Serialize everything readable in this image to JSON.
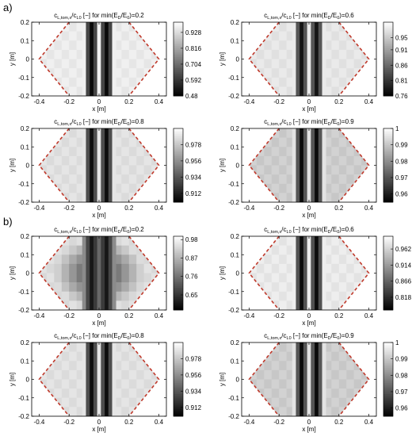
{
  "figure": {
    "part_labels": [
      "a)",
      "b)"
    ]
  },
  "colors": {
    "boundary": "#c0392b"
  },
  "chart_data": [
    {
      "type": "heatmap",
      "group": "a",
      "title_prefix": "c",
      "title_sub1": "L,tom,x",
      "title_mid": "/c",
      "title_sub2": "L0",
      "title_mid2": " [−] for min(E",
      "title_sub3": "D",
      "title_mid3": "/E",
      "title_sub4": "0",
      "title_tail": ")=0.2",
      "xlabel": "x [m]",
      "ylabel": "y [m]",
      "xlim": [
        -0.45,
        0.45
      ],
      "ylim": [
        -0.2,
        0.2
      ],
      "xticks": [
        "-0.4",
        "-0.2",
        "0",
        "0.2",
        "0.4"
      ],
      "yticks": [
        "0.2",
        "0.1",
        "0",
        "-0.1",
        "-0.2"
      ],
      "clim": [
        0.48,
        1.0
      ],
      "colorbar_ticks": [
        0.928,
        0.816,
        0.704,
        0.592,
        0.48
      ],
      "colorbar_labels": [
        "0.928",
        "0.816",
        "0.704",
        "0.592",
        "0.48"
      ],
      "column_x": [
        -0.1,
        -0.075,
        -0.05,
        -0.025,
        0.0,
        0.025,
        0.05,
        0.075,
        0.1
      ],
      "column_values": [
        0.97,
        0.62,
        0.5,
        0.62,
        0.97,
        0.62,
        0.5,
        0.62,
        0.97
      ],
      "field_value": 0.97,
      "grid": false,
      "grid_lines": true
    },
    {
      "type": "heatmap",
      "group": "a",
      "title_prefix": "c",
      "title_sub1": "L,tom,x",
      "title_mid": "/c",
      "title_sub2": "L0",
      "title_mid2": " [−] for min(E",
      "title_sub3": "D",
      "title_mid3": "/E",
      "title_sub4": "0",
      "title_tail": ")=0.6",
      "xlabel": "x [m]",
      "ylabel": "y [m]",
      "xlim": [
        -0.45,
        0.45
      ],
      "ylim": [
        -0.2,
        0.2
      ],
      "xticks": [
        "-0.4",
        "-0.2",
        "0",
        "0.2",
        "0.4"
      ],
      "yticks": [
        "0.2",
        "0.1",
        "0",
        "-0.1",
        "-0.2"
      ],
      "clim": [
        0.76,
        1.0
      ],
      "colorbar_ticks": [
        0.95,
        0.91,
        0.86,
        0.81,
        0.76
      ],
      "colorbar_labels": [
        "0.95",
        "0.91",
        "0.86",
        "0.81",
        "0.76"
      ],
      "column_x": [
        -0.1,
        -0.075,
        -0.05,
        -0.025,
        0.0,
        0.025,
        0.05,
        0.075,
        0.1
      ],
      "column_values": [
        0.98,
        0.84,
        0.78,
        0.84,
        0.98,
        0.84,
        0.78,
        0.84,
        0.98
      ],
      "field_value": 0.98,
      "grid": false,
      "grid_lines": true
    },
    {
      "type": "heatmap",
      "group": "a",
      "title_prefix": "c",
      "title_sub1": "L,tom,x",
      "title_mid": "/c",
      "title_sub2": "L0",
      "title_mid2": " [−] for min(E",
      "title_sub3": "D",
      "title_mid3": "/E",
      "title_sub4": "0",
      "title_tail": ")=0.8",
      "xlabel": "x [m]",
      "ylabel": "y [m]",
      "xlim": [
        -0.45,
        0.45
      ],
      "ylim": [
        -0.2,
        0.2
      ],
      "xticks": [
        "-0.4",
        "-0.2",
        "0",
        "0.2",
        "0.4"
      ],
      "yticks": [
        "0.2",
        "0.1",
        "0",
        "-0.1",
        "-0.2"
      ],
      "clim": [
        0.9,
        1.0
      ],
      "colorbar_ticks": [
        0.978,
        0.956,
        0.934,
        0.912
      ],
      "colorbar_labels": [
        "0.978",
        "0.956",
        "0.934",
        "0.912"
      ],
      "column_x": [
        -0.1,
        -0.075,
        -0.05,
        -0.025,
        0.0,
        0.025,
        0.05,
        0.075,
        0.1
      ],
      "column_values": [
        0.99,
        0.93,
        0.905,
        0.93,
        0.99,
        0.93,
        0.905,
        0.93,
        0.99
      ],
      "field_value": 0.99,
      "grid": false,
      "grid_lines": true
    },
    {
      "type": "heatmap",
      "group": "a",
      "title_prefix": "c",
      "title_sub1": "L,tom,x",
      "title_mid": "/c",
      "title_sub2": "L0",
      "title_mid2": " [−] for min(E",
      "title_sub3": "D",
      "title_mid3": "/E",
      "title_sub4": "0",
      "title_tail": ")=0.9",
      "xlabel": "x [m]",
      "ylabel": "y [m]",
      "xlim": [
        -0.45,
        0.45
      ],
      "ylim": [
        -0.2,
        0.2
      ],
      "xticks": [
        "-0.4",
        "-0.2",
        "0",
        "0.2",
        "0.4"
      ],
      "yticks": [
        "0.2",
        "0.1",
        "0",
        "-0.1",
        "-0.2"
      ],
      "clim": [
        0.955,
        1.0
      ],
      "colorbar_ticks": [
        1.0,
        0.99,
        0.98,
        0.97,
        0.96
      ],
      "colorbar_labels": [
        "1",
        "0.99",
        "0.98",
        "0.97",
        "0.96"
      ],
      "column_x": [
        -0.1,
        -0.075,
        -0.05,
        -0.025,
        0.0,
        0.025,
        0.05,
        0.075,
        0.1
      ],
      "column_values": [
        0.995,
        0.97,
        0.957,
        0.97,
        0.995,
        0.97,
        0.957,
        0.97,
        0.995
      ],
      "field_value": 0.992,
      "grid": false,
      "grid_lines": true
    },
    {
      "type": "heatmap",
      "group": "b",
      "title_prefix": "c",
      "title_sub1": "L,tom,x",
      "title_mid": "/c",
      "title_sub2": "L0",
      "title_mid2": " [−] for min(E",
      "title_sub3": "D",
      "title_mid3": "/E",
      "title_sub4": "0",
      "title_tail": ")=0.2",
      "xlabel": "x [m]",
      "ylabel": "y [m]",
      "xlim": [
        -0.45,
        0.45
      ],
      "ylim": [
        -0.2,
        0.2
      ],
      "xticks": [
        "-0.4",
        "-0.2",
        "0",
        "0.2",
        "0.4"
      ],
      "yticks": [
        "0.2",
        "0.1",
        "0",
        "-0.1",
        "-0.2"
      ],
      "clim": [
        0.56,
        1.0
      ],
      "colorbar_ticks": [
        0.98,
        0.87,
        0.76,
        0.65
      ],
      "colorbar_labels": [
        "0.98",
        "0.87",
        "0.76",
        "0.65"
      ],
      "column_x": [
        -0.1,
        -0.075,
        -0.05,
        -0.025,
        0.0,
        0.025,
        0.05,
        0.075,
        0.1
      ],
      "column_values": [
        0.8,
        0.68,
        0.6,
        0.66,
        0.74,
        0.66,
        0.6,
        0.68,
        0.8
      ],
      "field_value": 0.95,
      "radial_dip": true,
      "grid": false,
      "grid_lines": true
    },
    {
      "type": "heatmap",
      "group": "b",
      "title_prefix": "c",
      "title_sub1": "L,tom,x",
      "title_mid": "/c",
      "title_sub2": "L0",
      "title_mid2": " [−] for min(E",
      "title_sub3": "D",
      "title_mid3": "/E",
      "title_sub4": "0",
      "title_tail": ")=0.6",
      "xlabel": "x [m]",
      "ylabel": "y [m]",
      "xlim": [
        -0.45,
        0.45
      ],
      "ylim": [
        -0.2,
        0.2
      ],
      "xticks": [
        "-0.4",
        "-0.2",
        "0",
        "0.2",
        "0.4"
      ],
      "yticks": [
        "0.2",
        "0.1",
        "0",
        "-0.1",
        "-0.2"
      ],
      "clim": [
        0.78,
        1.0
      ],
      "colorbar_ticks": [
        0.962,
        0.914,
        0.866,
        0.818
      ],
      "colorbar_labels": [
        "0.962",
        "0.914",
        "0.866",
        "0.818"
      ],
      "column_x": [
        -0.1,
        -0.075,
        -0.05,
        -0.025,
        0.0,
        0.025,
        0.05,
        0.075,
        0.1
      ],
      "column_values": [
        0.985,
        0.85,
        0.79,
        0.85,
        0.985,
        0.85,
        0.79,
        0.85,
        0.985
      ],
      "field_value": 0.985,
      "grid": false,
      "grid_lines": true
    },
    {
      "type": "heatmap",
      "group": "b",
      "title_prefix": "c",
      "title_sub1": "L,tom,x",
      "title_mid": "/c",
      "title_sub2": "L0",
      "title_mid2": " [−] for min(E",
      "title_sub3": "D",
      "title_mid3": "/E",
      "title_sub4": "0",
      "title_tail": ")=0.8",
      "xlabel": "x [m]",
      "ylabel": "y [m]",
      "xlim": [
        -0.45,
        0.45
      ],
      "ylim": [
        -0.2,
        0.2
      ],
      "xticks": [
        "-0.4",
        "-0.2",
        "0",
        "0.2",
        "0.4"
      ],
      "yticks": [
        "0.2",
        "0.1",
        "0",
        "-0.1",
        "-0.2"
      ],
      "clim": [
        0.9,
        1.0
      ],
      "colorbar_ticks": [
        0.978,
        0.956,
        0.934,
        0.912
      ],
      "colorbar_labels": [
        "0.978",
        "0.956",
        "0.934",
        "0.912"
      ],
      "column_x": [
        -0.1,
        -0.075,
        -0.05,
        -0.025,
        0.0,
        0.025,
        0.05,
        0.075,
        0.1
      ],
      "column_values": [
        0.99,
        0.93,
        0.905,
        0.93,
        0.99,
        0.93,
        0.905,
        0.93,
        0.99
      ],
      "field_value": 0.99,
      "grid": false,
      "grid_lines": true
    },
    {
      "type": "heatmap",
      "group": "b",
      "title_prefix": "c",
      "title_sub1": "L,tom,x",
      "title_mid": "/c",
      "title_sub2": "L0",
      "title_mid2": " [−] for min(E",
      "title_sub3": "D",
      "title_mid3": "/E",
      "title_sub4": "0",
      "title_tail": ")=0.9",
      "xlabel": "x [m]",
      "ylabel": "y [m]",
      "xlim": [
        -0.45,
        0.45
      ],
      "ylim": [
        -0.2,
        0.2
      ],
      "xticks": [
        "-0.4",
        "-0.2",
        "0",
        "0.2",
        "0.4"
      ],
      "yticks": [
        "0.2",
        "0.1",
        "0",
        "-0.1",
        "-0.2"
      ],
      "clim": [
        0.955,
        1.0
      ],
      "colorbar_ticks": [
        1.0,
        0.99,
        0.98,
        0.97,
        0.96
      ],
      "colorbar_labels": [
        "1",
        "0.99",
        "0.98",
        "0.97",
        "0.96"
      ],
      "column_x": [
        -0.1,
        -0.075,
        -0.05,
        -0.025,
        0.0,
        0.025,
        0.05,
        0.075,
        0.1
      ],
      "column_values": [
        0.995,
        0.97,
        0.957,
        0.97,
        0.995,
        0.97,
        0.957,
        0.97,
        0.995
      ],
      "field_value": 0.992,
      "grid": false,
      "grid_lines": true
    }
  ]
}
